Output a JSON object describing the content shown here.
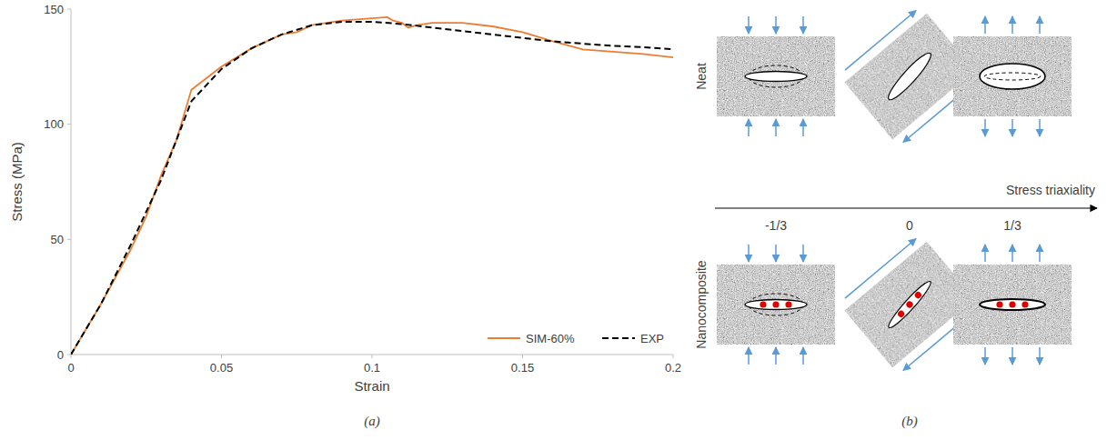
{
  "chart_data": {
    "type": "line",
    "x_label": "Strain",
    "y_label": "Stress (MPa)",
    "xlim": [
      0,
      0.2
    ],
    "ylim": [
      0,
      150
    ],
    "xticks": [
      0,
      0.05,
      0.1,
      0.15,
      0.2
    ],
    "yticks": [
      0,
      50,
      100,
      150
    ],
    "grid": false,
    "legend": "lower right",
    "series": [
      {
        "name": "SIM-60%",
        "color": "#ed7d31",
        "line_style": "solid",
        "x": [
          0,
          0.01,
          0.02,
          0.025,
          0.03,
          0.035,
          0.04,
          0.05,
          0.06,
          0.07,
          0.075,
          0.08,
          0.09,
          0.1,
          0.105,
          0.107,
          0.11,
          0.112,
          0.115,
          0.12,
          0.13,
          0.14,
          0.15,
          0.16,
          0.17,
          0.18,
          0.19,
          0.2
        ],
        "values": [
          0,
          22,
          46,
          60,
          78,
          93,
          115,
          125,
          133,
          139,
          140,
          143,
          145,
          146,
          146.5,
          145,
          144,
          142,
          143,
          144,
          144,
          142.5,
          140,
          136,
          132.5,
          131.5,
          130.5,
          129
        ]
      },
      {
        "name": "EXP",
        "color": "#000000",
        "line_style": "dashed",
        "x": [
          0,
          0.01,
          0.02,
          0.03,
          0.04,
          0.05,
          0.06,
          0.07,
          0.08,
          0.09,
          0.1,
          0.11,
          0.12,
          0.13,
          0.14,
          0.15,
          0.16,
          0.17,
          0.18,
          0.19,
          0.2
        ],
        "values": [
          0,
          22,
          48,
          76,
          110,
          124,
          133,
          139,
          143,
          144.5,
          144.5,
          143.5,
          142,
          140.5,
          139,
          137.5,
          136,
          135,
          134,
          133.5,
          132.5
        ]
      }
    ]
  },
  "diagram": {
    "rows": [
      "Neat",
      "Nanocomposite"
    ],
    "axis_label": "Stress triaxiality",
    "ticks": [
      "-1/3",
      "0",
      "1/3"
    ]
  },
  "panel_labels": [
    "(a)",
    "(b)"
  ]
}
